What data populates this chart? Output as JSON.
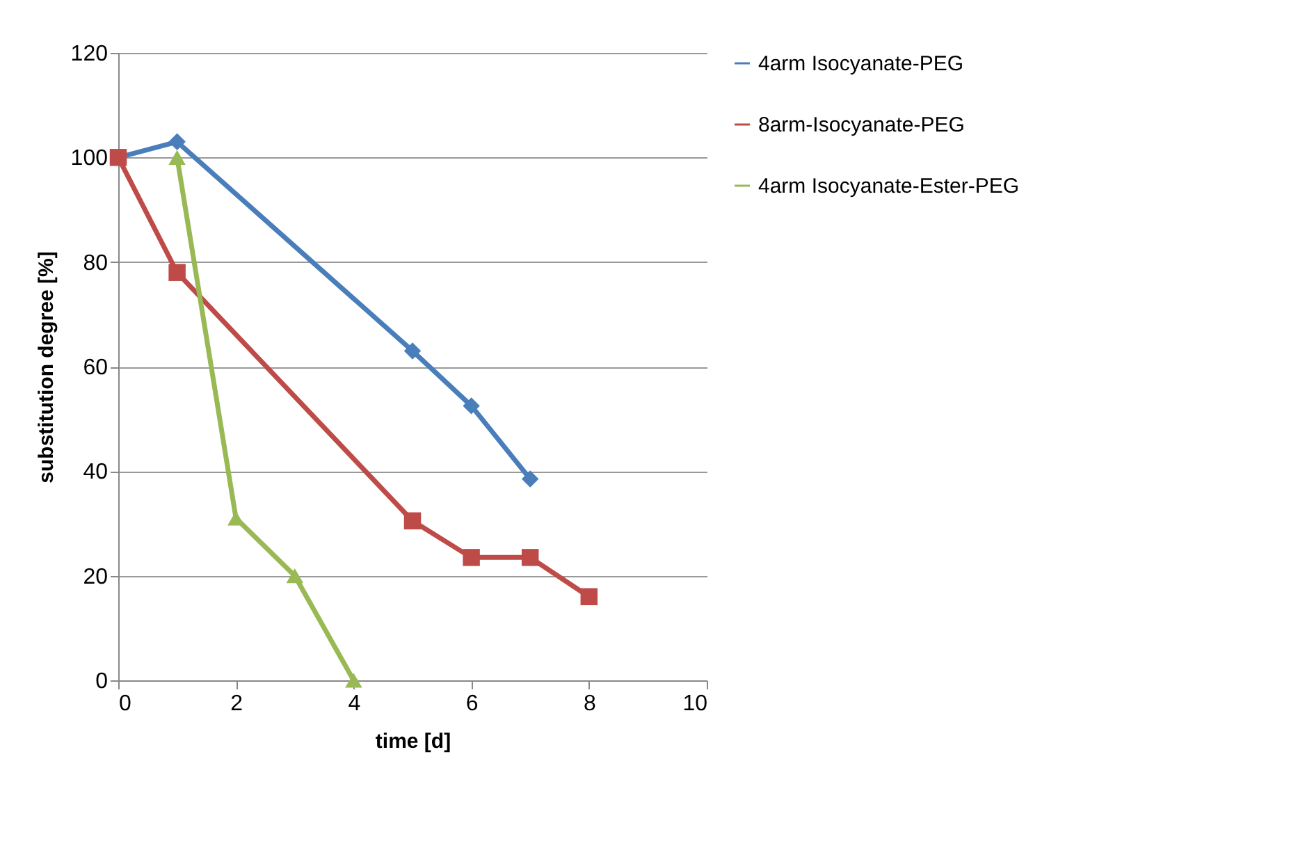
{
  "chart_data": {
    "type": "line",
    "xlabel": "time [d]",
    "ylabel": "substitution degree [%]",
    "xlim": [
      0,
      10
    ],
    "xticks": [
      0,
      2,
      4,
      6,
      8,
      10
    ],
    "ylim": [
      0,
      120
    ],
    "yticks": [
      0,
      20,
      40,
      60,
      80,
      100,
      120
    ],
    "grid": "y",
    "legend": "right",
    "series": [
      {
        "name": "4arm Isocyanate-PEG",
        "color": "#4a7ebb",
        "marker": "diamond",
        "x": [
          0,
          1,
          5,
          6,
          7
        ],
        "values": [
          100,
          103,
          63,
          52.5,
          38.5
        ]
      },
      {
        "name": "8arm-Isocyanate-PEG",
        "color": "#be4b48",
        "marker": "square",
        "x": [
          0,
          1,
          5,
          6,
          7,
          8
        ],
        "values": [
          100,
          78,
          30.5,
          23.5,
          23.5,
          16
        ]
      },
      {
        "name": "4arm Isocyanate-Ester-PEG",
        "color": "#98b954",
        "marker": "triangle",
        "x": [
          1,
          2,
          3,
          4
        ],
        "values": [
          100,
          31,
          20,
          0
        ]
      }
    ]
  }
}
